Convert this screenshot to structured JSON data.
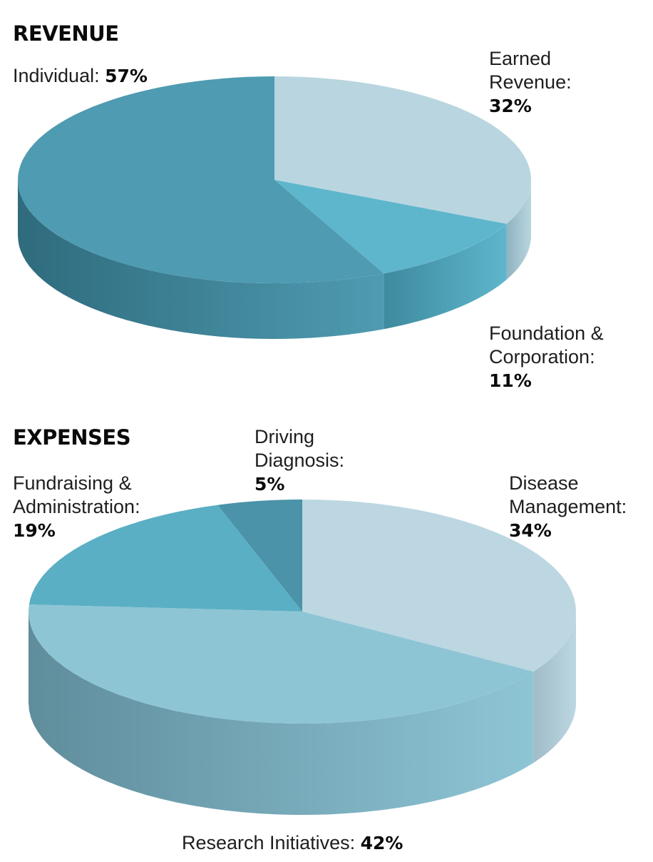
{
  "chart_data": [
    {
      "type": "pie",
      "title": "REVENUE",
      "slices": [
        {
          "label": "Individual:",
          "value": 57,
          "value_label": "57%",
          "color": "#4f9bb1",
          "side_color": "#2f6b7d"
        },
        {
          "label": "Earned Revenue:",
          "value": 32,
          "value_label": "32%",
          "color": "#b9d6e0",
          "side_color": "#8fb3c0"
        },
        {
          "label": "Foundation & Corporation:",
          "value": 11,
          "value_label": "11%",
          "color": "#5eb6cc",
          "side_color": "#3e8a9e"
        }
      ]
    },
    {
      "type": "pie",
      "title": "EXPENSES",
      "slices": [
        {
          "label": "Disease Management:",
          "value": 34,
          "value_label": "34%",
          "color": "#bcd7e1",
          "side_color": "#9fbcc8"
        },
        {
          "label": "Research Initiatives:",
          "value": 42,
          "value_label": "42%",
          "color": "#8ec5d5",
          "side_color": "#5f8d9c"
        },
        {
          "label": "Fundraising & Administration:",
          "value": 19,
          "value_label": "19%",
          "color": "#5aafc4",
          "side_color": "#3f8396"
        },
        {
          "label": "Driving Diagnosis:",
          "value": 5,
          "value_label": "5%",
          "color": "#4a93a8",
          "side_color": "#356e80"
        }
      ]
    }
  ]
}
